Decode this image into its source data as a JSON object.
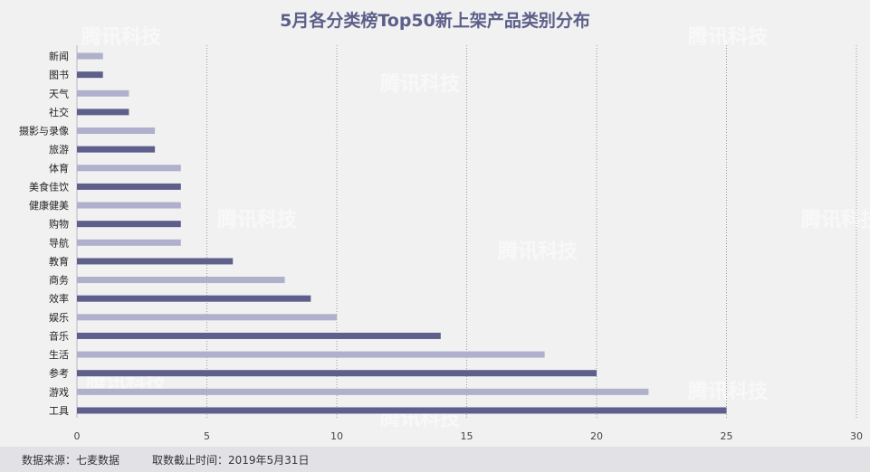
{
  "chart_data": {
    "type": "bar",
    "orientation": "horizontal",
    "title": "5月各分类榜Top50新上架产品类别分布",
    "categories": [
      "新闻",
      "图书",
      "天气",
      "社交",
      "摄影与录像",
      "旅游",
      "体育",
      "美食佳饮",
      "健康健美",
      "购物",
      "导航",
      "教育",
      "商务",
      "效率",
      "娱乐",
      "音乐",
      "生活",
      "参考",
      "游戏",
      "工具"
    ],
    "values": [
      1,
      1,
      2,
      2,
      3,
      3,
      4,
      4,
      4,
      4,
      4,
      6,
      8,
      9,
      10,
      14,
      18,
      20,
      22,
      25
    ],
    "xlim": [
      0,
      30
    ],
    "xticks": [
      0,
      5,
      10,
      15,
      20,
      25,
      30
    ],
    "grid": "vertical dotted",
    "colors": {
      "dark": "#5e5f8d",
      "light": "#aeb0cc"
    }
  },
  "watermark": "腾讯科技",
  "footer": {
    "source": "数据来源：七麦数据",
    "cutoff": "取数截止时间：2019年5月31日"
  }
}
